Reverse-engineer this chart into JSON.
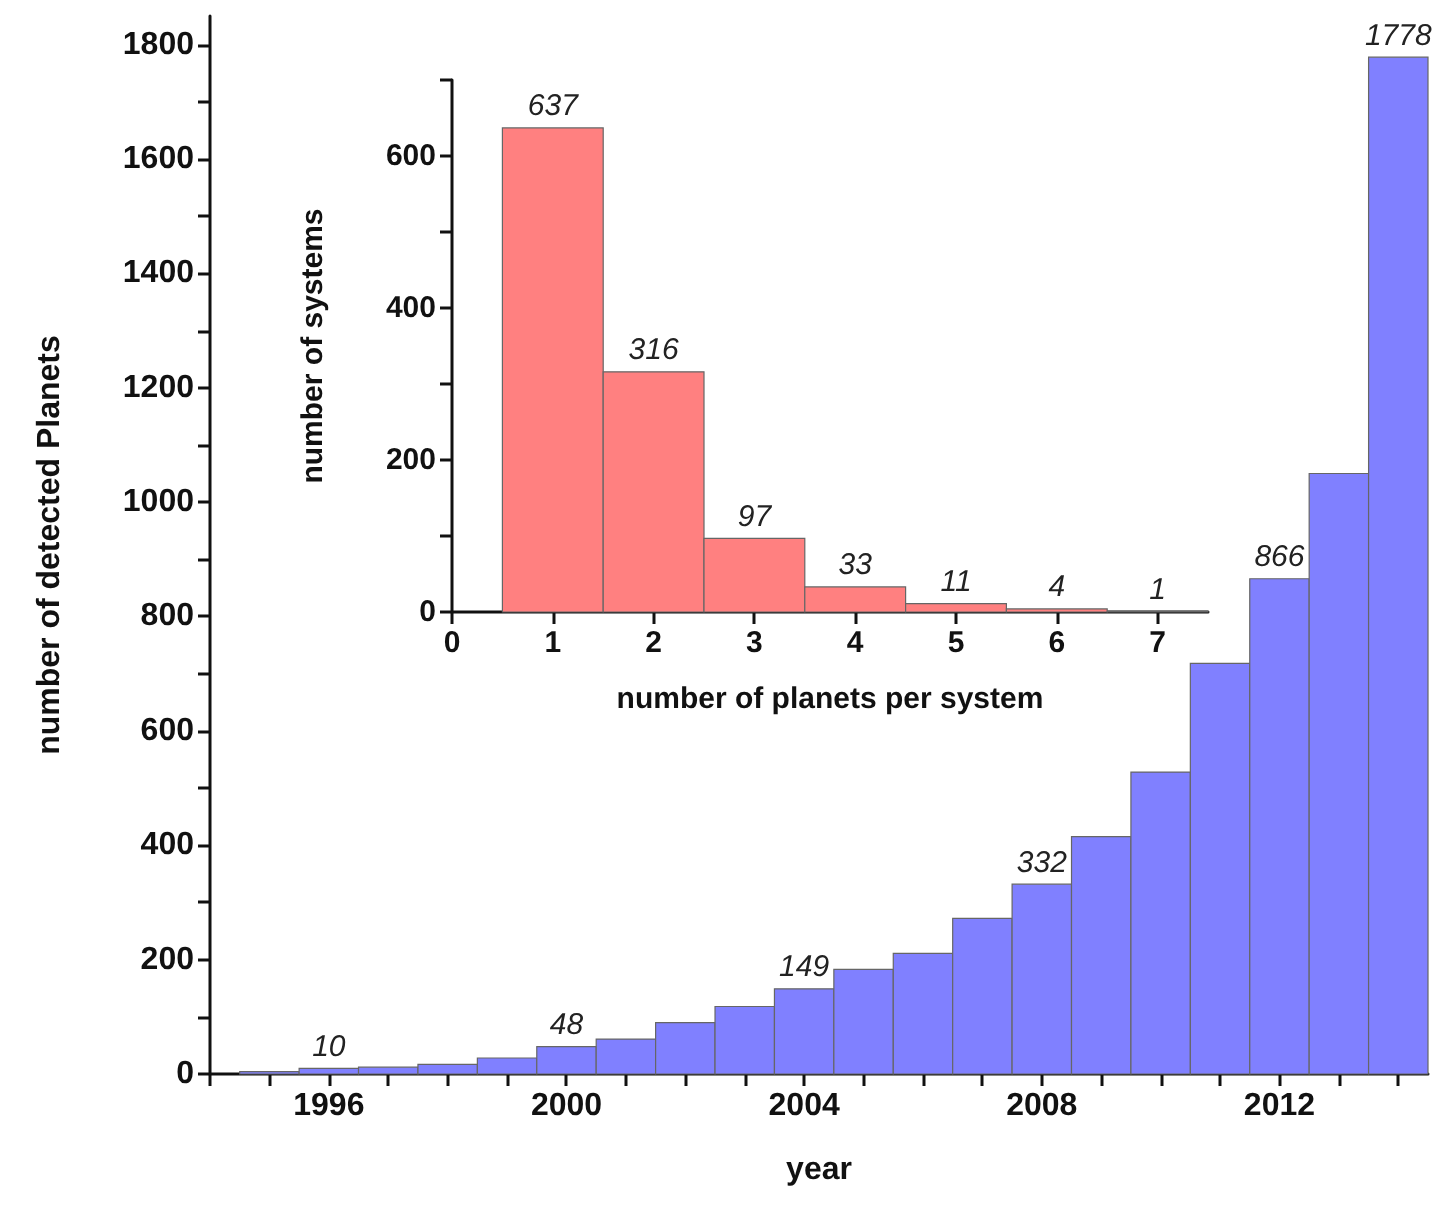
{
  "chart_data": [
    {
      "type": "histogram",
      "xlabel": "year",
      "ylabel": "number of detected Planets",
      "color": "#8080ff",
      "bins": [
        1994.5,
        1995.5,
        1996.5,
        1997.5,
        1998.5,
        1999.5,
        2000.5,
        2001.5,
        2002.5,
        2003.5,
        2004.5,
        2005.5,
        2006.5,
        2007.5,
        2008.5,
        2009.5,
        2010.5,
        2011.5,
        2012.5,
        2013.5,
        2014.5
      ],
      "values": [
        4,
        10,
        12,
        17,
        28,
        48,
        61,
        90,
        118,
        149,
        183,
        211,
        272,
        332,
        415,
        528,
        718,
        866,
        1050,
        1778
      ],
      "value_labels": [
        null,
        "10",
        null,
        null,
        null,
        "48",
        null,
        null,
        null,
        "149",
        null,
        null,
        null,
        "332",
        null,
        null,
        null,
        "866",
        null,
        "1778"
      ],
      "xlim": [
        1994,
        2014.5
      ],
      "xticks": [
        {
          "value": 1994,
          "label": null
        },
        {
          "value": 1995,
          "label": null
        },
        1996,
        {
          "value": 1997,
          "label": null
        },
        {
          "value": 1998,
          "label": null
        },
        {
          "value": 1999,
          "label": null
        },
        2000,
        {
          "value": 2001,
          "label": null
        },
        {
          "value": 2002,
          "label": null
        },
        {
          "value": 2003,
          "label": null
        },
        2004,
        {
          "value": 2005,
          "label": null
        },
        {
          "value": 2006,
          "label": null
        },
        {
          "value": 2007,
          "label": null
        },
        2008,
        {
          "value": 2009,
          "label": null
        },
        {
          "value": 2010,
          "label": null
        },
        {
          "value": 2011,
          "label": null
        },
        2012,
        {
          "value": 2013,
          "label": null
        },
        {
          "value": 2014,
          "label": null
        }
      ],
      "ylim": [
        0,
        1850
      ],
      "yticks": [
        0,
        {
          "value": 100,
          "label": null
        },
        200,
        {
          "value": 300,
          "label": null
        },
        400,
        {
          "value": 500,
          "label": null
        },
        600,
        {
          "value": 700,
          "label": null
        },
        800,
        {
          "value": 900,
          "label": null
        },
        1000,
        {
          "value": 1100,
          "label": null
        },
        1200,
        {
          "value": 1300,
          "label": null
        },
        1400,
        {
          "value": 1500,
          "label": null
        },
        1600,
        {
          "value": 1700,
          "label": null
        },
        1800
      ],
      "title": null
    },
    {
      "type": "histogram",
      "xlabel": "number of planets per system",
      "ylabel": "number of systems",
      "color": "#ff8080",
      "bins": [
        0.5,
        1.5,
        2.5,
        3.5,
        4.5,
        5.5,
        6.5,
        7.5
      ],
      "values": [
        637,
        316,
        97,
        33,
        11,
        4,
        1
      ],
      "data_labels": true,
      "xlim": [
        0,
        7.5
      ],
      "xticks": [
        0,
        1,
        2,
        3,
        4,
        5,
        6,
        7
      ],
      "ylim": [
        0,
        700
      ],
      "yticks": [
        0,
        {
          "value": 100,
          "label": null
        },
        200,
        {
          "value": 300,
          "label": null
        },
        400,
        {
          "value": 500,
          "label": null
        },
        600,
        {
          "value": 700,
          "label": null
        }
      ],
      "title": null
    }
  ]
}
